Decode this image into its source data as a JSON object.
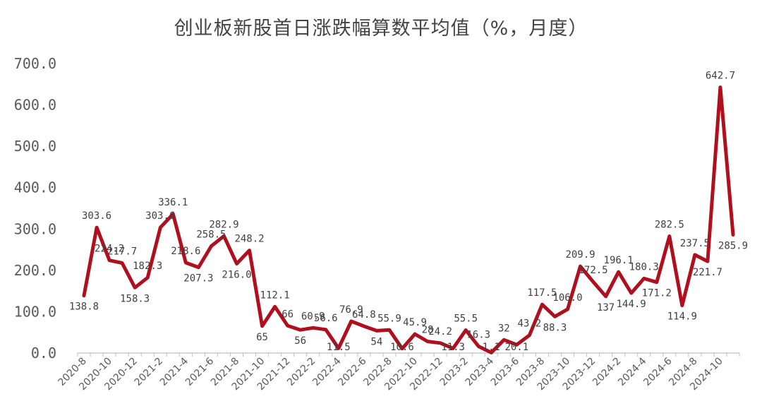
{
  "chart_data": {
    "type": "line",
    "title": "创业板新股首日涨跌幅算数平均值（%，月度）",
    "xlabel": "",
    "ylabel": "",
    "ylim": [
      0,
      700
    ],
    "yticks": [
      "0.0",
      "100.0",
      "200.0",
      "300.0",
      "400.0",
      "500.0",
      "600.0",
      "700.0"
    ],
    "grid": false,
    "legend": "none",
    "line_color": "#B0101E",
    "x": [
      "2020-8",
      "2020-9",
      "2020-10",
      "2020-11",
      "2020-12",
      "2021-1",
      "2021-2",
      "2021-3",
      "2021-4",
      "2021-5",
      "2021-6",
      "2021-7",
      "2021-8",
      "2021-9",
      "2021-10",
      "2021-11",
      "2021-12",
      "2022-1",
      "2022-2",
      "2022-3",
      "2022-4",
      "2022-5",
      "2022-6",
      "2022-7",
      "2022-8",
      "2022-9",
      "2022-10",
      "2022-11",
      "2022-12",
      "2023-1",
      "2023-2",
      "2023-3",
      "2023-4",
      "2023-5",
      "2023-6",
      "2023-7",
      "2023-8",
      "2023-9",
      "2023-10",
      "2023-11",
      "2023-12",
      "2024-1",
      "2024-2",
      "2024-3",
      "2024-4",
      "2024-5",
      "2024-6",
      "2024-7",
      "2024-8",
      "2024-9",
      "2024-10",
      "2024-11"
    ],
    "xtick_labels": [
      "2020-8",
      "2020-10",
      "2020-12",
      "2021-2",
      "2021-4",
      "2021-6",
      "2021-8",
      "2021-10",
      "2021-12",
      "2022-2",
      "2022-4",
      "2022-6",
      "2022-8",
      "2022-10",
      "2022-12",
      "2023-2",
      "2023-4",
      "2023-6",
      "2023-8",
      "2023-10",
      "2023-12",
      "2024-2",
      "2024-4",
      "2024-6",
      "2024-8",
      "2024-10"
    ],
    "values": [
      138.8,
      303.6,
      224.2,
      217.7,
      158.3,
      182.3,
      303.6,
      336.1,
      218.6,
      207.3,
      258.5,
      282.9,
      216.0,
      248.2,
      65.0,
      112.1,
      66.0,
      56.0,
      60.9,
      56.6,
      11.5,
      76.9,
      64.8,
      54.0,
      55.9,
      10.6,
      45.9,
      28.0,
      24.2,
      11.3,
      55.5,
      16.3,
      1.1,
      32.0,
      20.1,
      43.2,
      117.5,
      88.3,
      106.0,
      209.9,
      172.5,
      137.0,
      196.1,
      144.9,
      180.3,
      171.2,
      282.5,
      114.9,
      237.5,
      221.7,
      642.7,
      285.9
    ],
    "data_labels": [
      "138.8",
      "303.6",
      "224.2",
      "217.7",
      "158.3",
      "182.3",
      "303.6",
      "336.1",
      "218.6",
      "207.3",
      "258.5",
      "282.9",
      "216.0",
      "248.2",
      "65",
      "112.1",
      "66",
      "56",
      "60.9",
      "56.6",
      "11.5",
      "76.9",
      "64.8",
      "54",
      "55.9",
      "10.6",
      "45.9",
      "28",
      "24.2",
      "11.3",
      "55.5",
      "16.3",
      "1.1",
      "32",
      "20.1",
      "43.2",
      "117.5",
      "88.3",
      "106.0",
      "209.9",
      "172.5",
      "137",
      "196.1",
      "144.9",
      "180.3",
      "171.2",
      "282.5",
      "114.9",
      "237.5",
      "221.7",
      "642.7",
      "285.9"
    ]
  }
}
